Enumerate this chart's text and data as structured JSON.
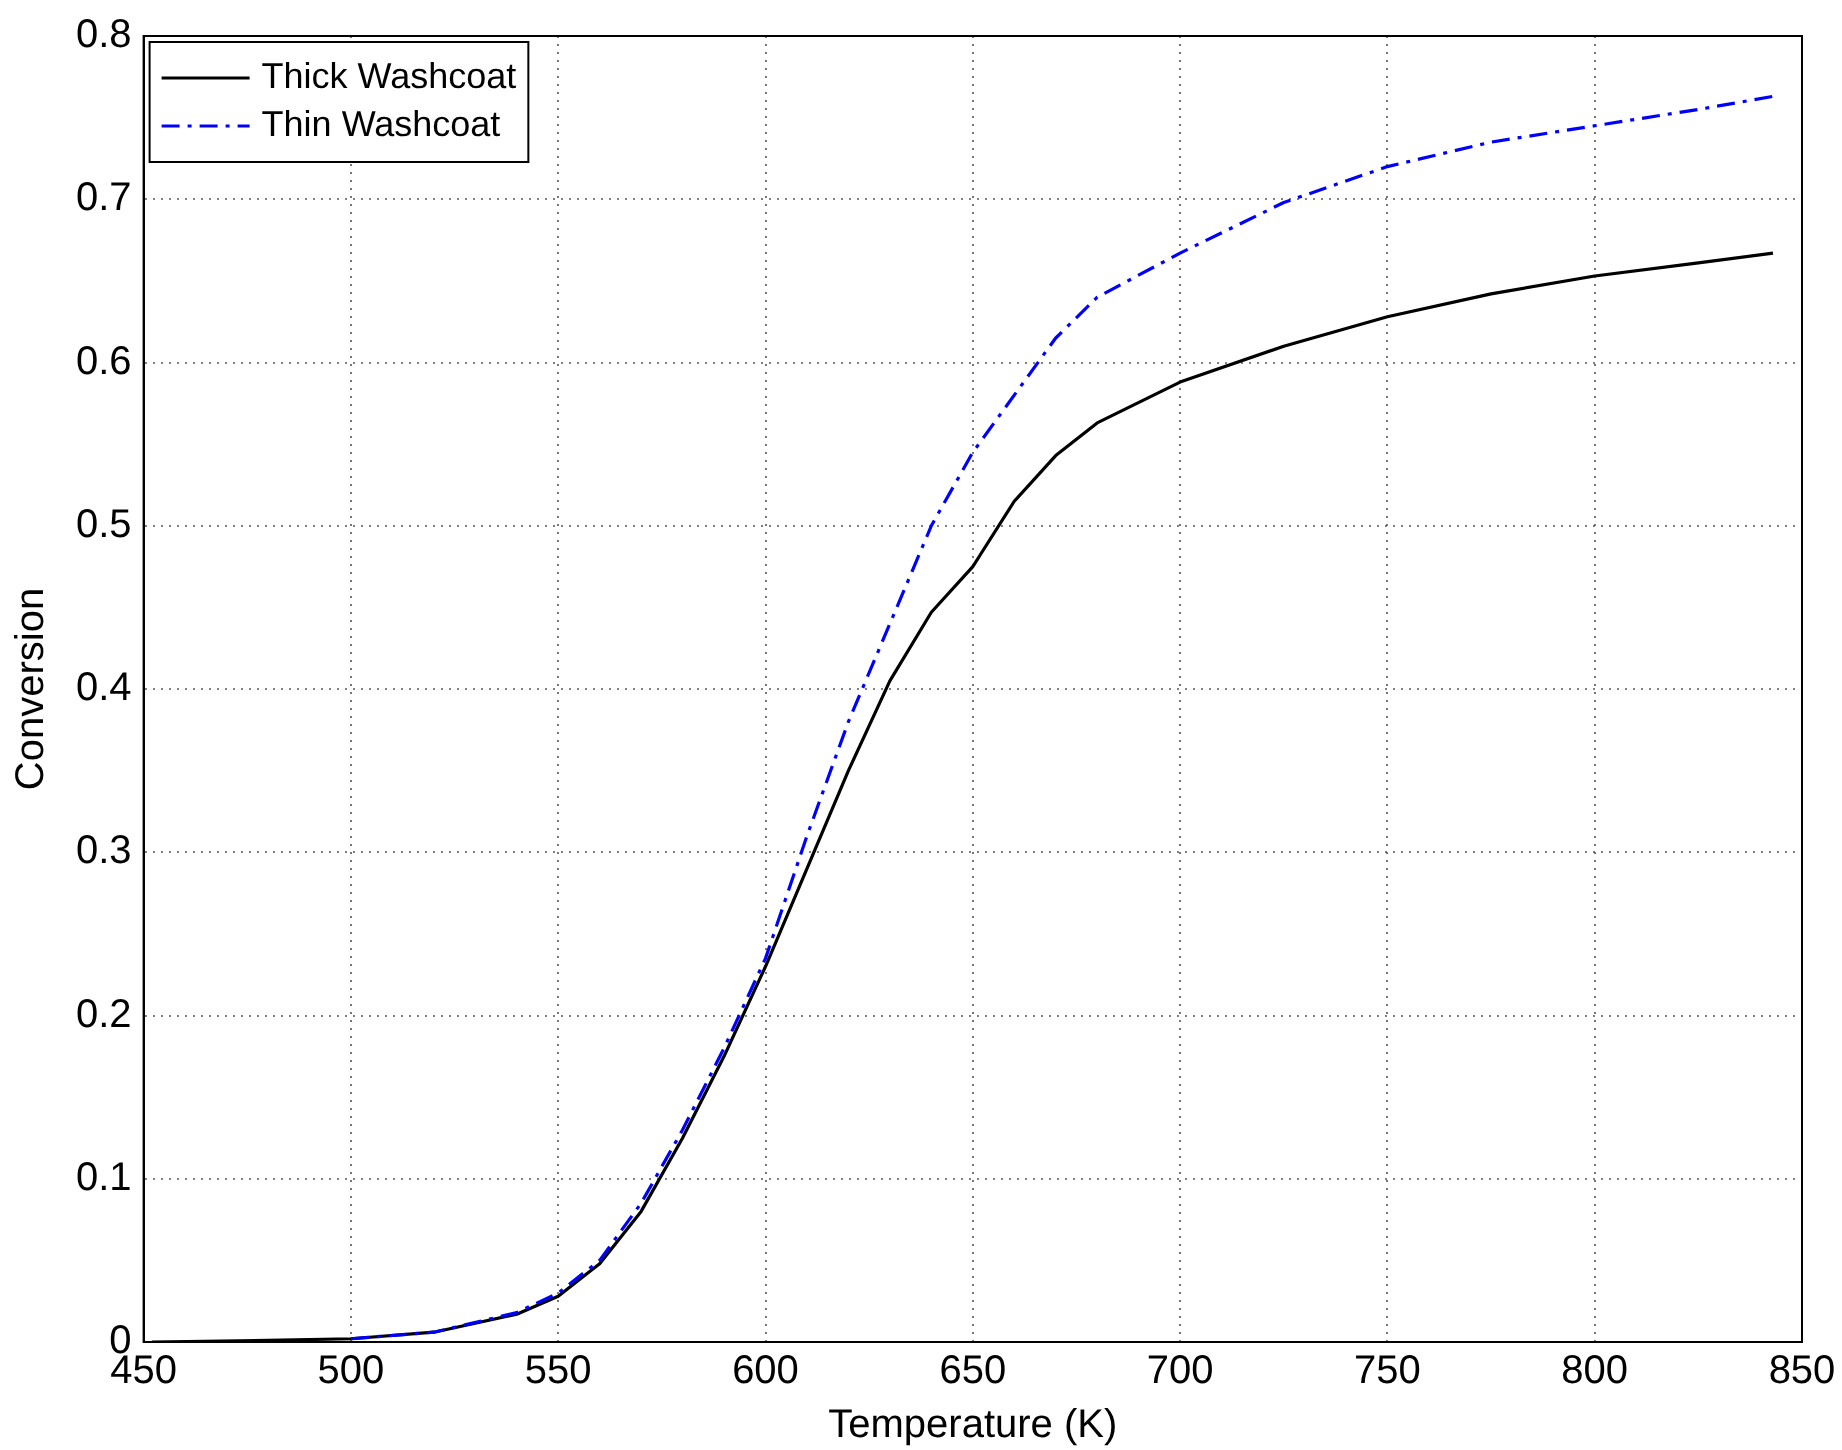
{
  "chart_data": {
    "type": "line",
    "xlabel": "Temperature (K)",
    "ylabel": "Conversion",
    "xlim": [
      450,
      850
    ],
    "ylim": [
      0,
      0.8
    ],
    "xticks": [
      450,
      500,
      550,
      600,
      650,
      700,
      750,
      800,
      850
    ],
    "yticks": [
      0,
      0.1,
      0.2,
      0.3,
      0.4,
      0.5,
      0.6,
      0.7,
      0.8
    ],
    "grid": true,
    "legend": "top left",
    "marker": "none",
    "series": [
      {
        "name": "Thick Washcoat",
        "color": "#000000",
        "line_style": "solid",
        "x": [
          452,
          480,
          500,
          520,
          540,
          550,
          560,
          570,
          580,
          590,
          600,
          610,
          620,
          630,
          640,
          650,
          652,
          660,
          670,
          680,
          700,
          725,
          750,
          775,
          800,
          825,
          843
        ],
        "values": [
          0,
          0.001,
          0.002,
          0.006,
          0.017,
          0.028,
          0.048,
          0.08,
          0.125,
          0.175,
          0.23,
          0.29,
          0.35,
          0.405,
          0.447,
          0.475,
          0.483,
          0.515,
          0.543,
          0.563,
          0.588,
          0.61,
          0.628,
          0.642,
          0.653,
          0.661,
          0.667
        ]
      },
      {
        "name": "Thin Washcoat",
        "color": "#0000ff",
        "line_style": "dashed",
        "x": [
          500,
          520,
          540,
          550,
          560,
          570,
          580,
          590,
          600,
          610,
          620,
          630,
          640,
          650,
          660,
          670,
          680,
          700,
          725,
          750,
          775,
          800,
          825,
          843
        ],
        "values": [
          0.002,
          0.006,
          0.018,
          0.03,
          0.05,
          0.085,
          0.13,
          0.18,
          0.235,
          0.31,
          0.38,
          0.44,
          0.5,
          0.545,
          0.58,
          0.615,
          0.64,
          0.667,
          0.698,
          0.72,
          0.735,
          0.745,
          0.755,
          0.763
        ]
      }
    ]
  }
}
